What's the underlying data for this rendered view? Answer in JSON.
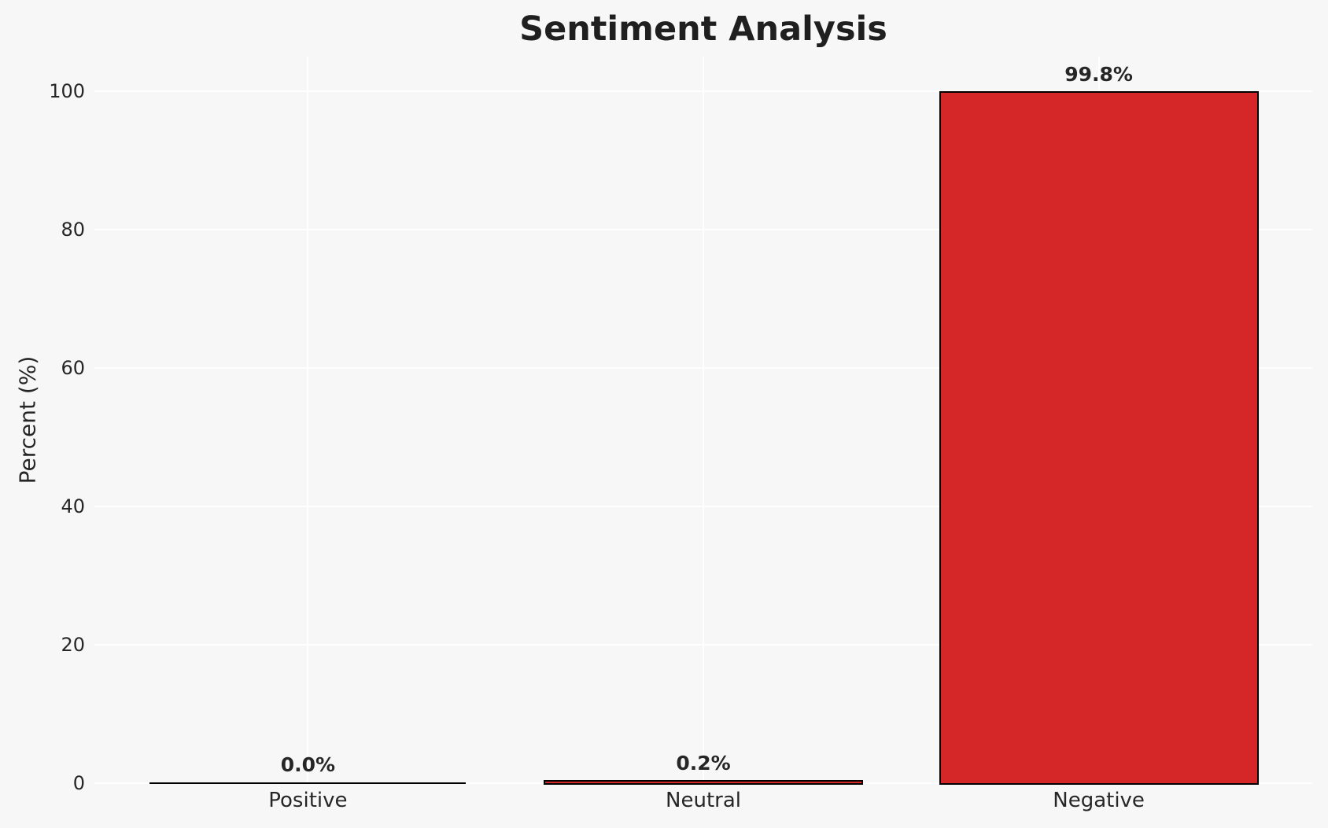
{
  "chart_data": {
    "type": "bar",
    "title": "Sentiment Analysis",
    "xlabel": "",
    "ylabel": "Percent (%)",
    "categories": [
      "Positive",
      "Neutral",
      "Negative"
    ],
    "values": [
      0.0,
      0.2,
      99.8
    ],
    "bar_labels": [
      "0.0%",
      "0.2%",
      "99.8%"
    ],
    "yticks": [
      0,
      20,
      40,
      60,
      80,
      100
    ],
    "ylim": [
      0,
      105
    ],
    "xlim": [
      -0.54,
      2.54
    ],
    "bar_width": 0.8,
    "grid": "on",
    "legend": "none"
  },
  "colors": {
    "background": "#f7f7f7",
    "gridline": "#ffffff",
    "text": "#262626",
    "bar_fill": "#d62728",
    "bar_edge": "#000000"
  }
}
